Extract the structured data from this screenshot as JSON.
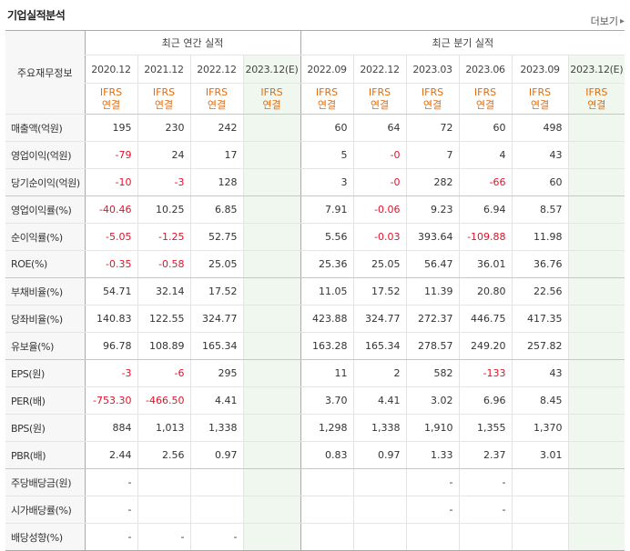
{
  "title": "기업실적분석",
  "more_label": "더보기",
  "more_icon": "chevron-right-icon",
  "header": {
    "label_col": "주요재무정보",
    "annual_title": "최근 연간 실적",
    "quarterly_title": "최근 분기 실적",
    "annual_periods": [
      "2020.12",
      "2021.12",
      "2022.12",
      "2023.12(E)"
    ],
    "quarterly_periods": [
      "2022.09",
      "2022.12",
      "2023.03",
      "2023.06",
      "2023.09",
      "2023.12(E)"
    ],
    "ifrs_top": "IFRS",
    "ifrs_bottom": "연결"
  },
  "rows": [
    {
      "label": "매출액(억원)",
      "annual": [
        "195",
        "230",
        "242",
        ""
      ],
      "quarterly": [
        "60",
        "64",
        "72",
        "60",
        "498",
        ""
      ]
    },
    {
      "label": "영업이익(억원)",
      "annual": [
        "-79",
        "24",
        "17",
        ""
      ],
      "quarterly": [
        "5",
        "-0",
        "7",
        "4",
        "43",
        ""
      ]
    },
    {
      "label": "당기순이익(억원)",
      "annual": [
        "-10",
        "-3",
        "128",
        ""
      ],
      "quarterly": [
        "3",
        "-0",
        "282",
        "-66",
        "60",
        ""
      ]
    },
    {
      "label": "영업이익률(%)",
      "annual": [
        "-40.46",
        "10.25",
        "6.85",
        ""
      ],
      "quarterly": [
        "7.91",
        "-0.06",
        "9.23",
        "6.94",
        "8.57",
        ""
      ]
    },
    {
      "label": "순이익률(%)",
      "annual": [
        "-5.05",
        "-1.25",
        "52.75",
        ""
      ],
      "quarterly": [
        "5.56",
        "-0.03",
        "393.64",
        "-109.88",
        "11.98",
        ""
      ]
    },
    {
      "label": "ROE(%)",
      "annual": [
        "-0.35",
        "-0.58",
        "25.05",
        ""
      ],
      "quarterly": [
        "25.36",
        "25.05",
        "56.47",
        "36.01",
        "36.76",
        ""
      ]
    },
    {
      "label": "부채비율(%)",
      "annual": [
        "54.71",
        "32.14",
        "17.52",
        ""
      ],
      "quarterly": [
        "11.05",
        "17.52",
        "11.39",
        "20.80",
        "22.56",
        ""
      ]
    },
    {
      "label": "당좌비율(%)",
      "annual": [
        "140.83",
        "122.55",
        "324.77",
        ""
      ],
      "quarterly": [
        "423.88",
        "324.77",
        "272.37",
        "446.75",
        "417.35",
        ""
      ]
    },
    {
      "label": "유보율(%)",
      "annual": [
        "96.78",
        "108.89",
        "165.34",
        ""
      ],
      "quarterly": [
        "163.28",
        "165.34",
        "278.57",
        "249.20",
        "257.82",
        ""
      ]
    },
    {
      "label": "EPS(원)",
      "annual": [
        "-3",
        "-6",
        "295",
        ""
      ],
      "quarterly": [
        "11",
        "2",
        "582",
        "-133",
        "43",
        ""
      ]
    },
    {
      "label": "PER(배)",
      "annual": [
        "-753.30",
        "-466.50",
        "4.41",
        ""
      ],
      "quarterly": [
        "3.70",
        "4.41",
        "3.02",
        "6.96",
        "8.45",
        ""
      ]
    },
    {
      "label": "BPS(원)",
      "annual": [
        "884",
        "1,013",
        "1,338",
        ""
      ],
      "quarterly": [
        "1,298",
        "1,338",
        "1,910",
        "1,355",
        "1,370",
        ""
      ]
    },
    {
      "label": "PBR(배)",
      "annual": [
        "2.44",
        "2.56",
        "0.97",
        ""
      ],
      "quarterly": [
        "0.83",
        "0.97",
        "1.33",
        "2.37",
        "3.01",
        ""
      ]
    },
    {
      "label": "주당배당금(원)",
      "annual": [
        "-",
        "",
        "",
        ""
      ],
      "quarterly": [
        "",
        "",
        "-",
        "-",
        "",
        ""
      ]
    },
    {
      "label": "시가배당률(%)",
      "annual": [
        "-",
        "",
        "",
        ""
      ],
      "quarterly": [
        "",
        "",
        "-",
        "-",
        "",
        ""
      ]
    },
    {
      "label": "배당성향(%)",
      "annual": [
        "-",
        "-",
        "-",
        ""
      ],
      "quarterly": [
        "",
        "",
        "",
        "",
        "",
        ""
      ]
    }
  ],
  "colors": {
    "negative": "#e3112b",
    "ifrs": "#e46c0a",
    "estimate_bg": "#f0f7ee",
    "estimate_text": "#6f9b3f"
  }
}
